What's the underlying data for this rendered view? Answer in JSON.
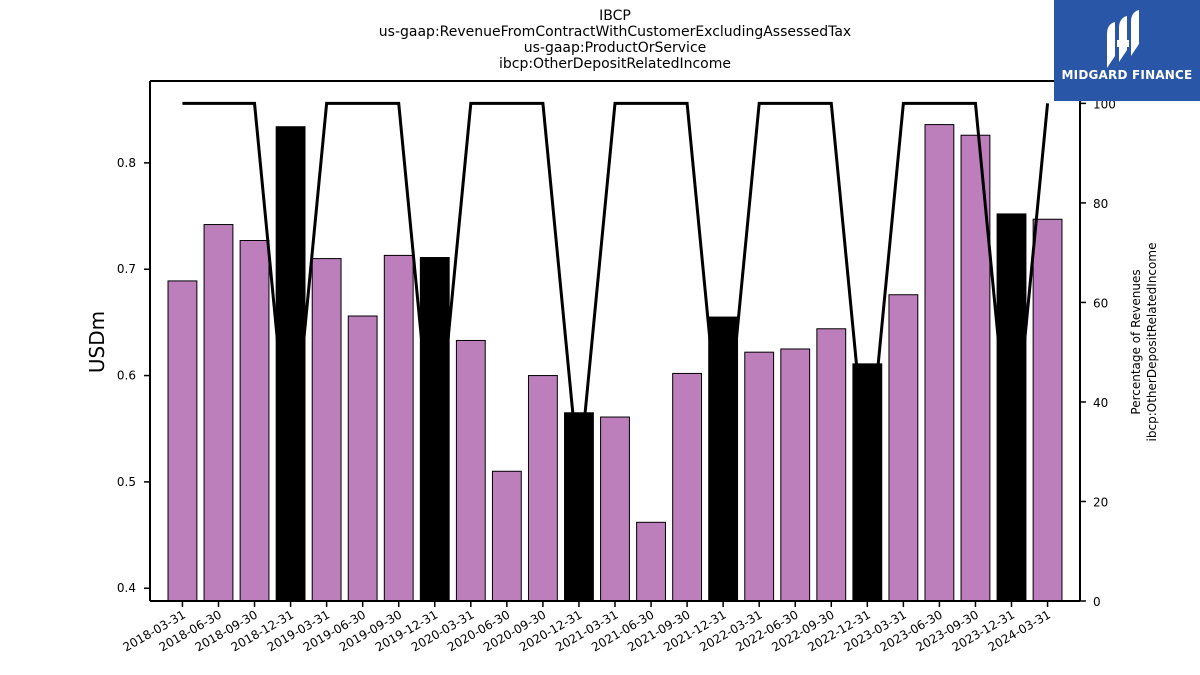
{
  "chart_data": {
    "type": "bar",
    "title_lines": [
      "IBCP",
      "us-gaap:RevenueFromContractWithCustomerExcludingAssessedTax",
      "us-gaap:ProductOrService",
      "ibcp:OtherDepositRelatedIncome"
    ],
    "ylabel": "USDm",
    "y2label_lines": [
      "Percentage of Revenues",
      "ibcp:OtherDepositRelatedIncome"
    ],
    "ylim": [
      0.388,
      0.877
    ],
    "y_ticks": [
      0.4,
      0.5,
      0.6,
      0.7,
      0.8
    ],
    "y2lim": [
      0,
      104.5
    ],
    "y2_ticks": [
      0,
      20,
      40,
      60,
      80,
      100
    ],
    "categories": [
      "2018-03-31",
      "2018-06-30",
      "2018-09-30",
      "2018-12-31",
      "2019-03-31",
      "2019-06-30",
      "2019-09-30",
      "2019-12-31",
      "2020-03-31",
      "2020-06-30",
      "2020-09-30",
      "2020-12-31",
      "2021-03-31",
      "2021-06-30",
      "2021-09-30",
      "2021-12-31",
      "2022-03-31",
      "2022-06-30",
      "2022-09-30",
      "2022-12-31",
      "2023-03-31",
      "2023-06-30",
      "2023-09-30",
      "2023-12-31",
      "2024-03-31"
    ],
    "values": [
      0.689,
      0.742,
      0.727,
      0.834,
      0.71,
      0.656,
      0.713,
      0.711,
      0.633,
      0.51,
      0.6,
      0.565,
      0.561,
      0.462,
      0.602,
      0.655,
      0.622,
      0.625,
      0.644,
      0.611,
      0.676,
      0.836,
      0.826,
      0.752,
      0.747
    ],
    "bar_colors": [
      "#bc7fbc",
      "#bc7fbc",
      "#bc7fbc",
      "#000000",
      "#bc7fbc",
      "#bc7fbc",
      "#bc7fbc",
      "#000000",
      "#bc7fbc",
      "#bc7fbc",
      "#bc7fbc",
      "#000000",
      "#bc7fbc",
      "#bc7fbc",
      "#bc7fbc",
      "#000000",
      "#bc7fbc",
      "#bc7fbc",
      "#bc7fbc",
      "#000000",
      "#bc7fbc",
      "#bc7fbc",
      "#bc7fbc",
      "#000000",
      "#bc7fbc"
    ],
    "line_values": [
      100,
      100,
      100,
      25,
      100,
      100,
      100,
      25,
      100,
      100,
      100,
      25,
      100,
      100,
      100,
      25,
      100,
      100,
      100,
      25,
      100,
      100,
      100,
      25,
      100
    ],
    "line_color": "#000000",
    "grid": false,
    "legend": "none"
  },
  "logo": {
    "text": "MIDGARD FINANCE",
    "bg": "#2a56a8"
  }
}
